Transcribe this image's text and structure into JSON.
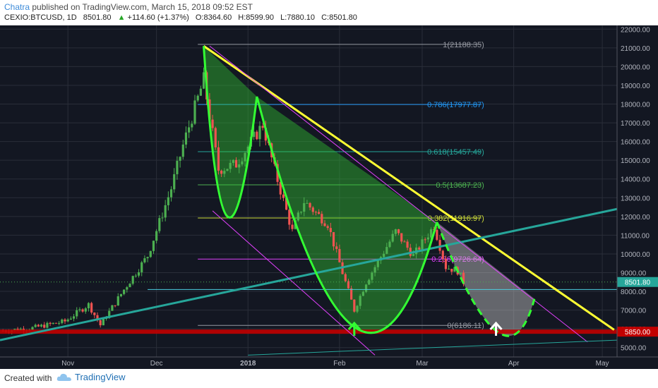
{
  "header": {
    "author": "Chatra",
    "published": "published on TradingView.com, March 15, 2018 09:52 EST",
    "symbol": "CEXIO:BTCUSD, 1D",
    "last": "8501.80",
    "change_arrow": "▲",
    "change": "+114.60 (+1.37%)",
    "open": "O:8364.60",
    "high": "H:8599.90",
    "low": "L:7880.10",
    "close": "C:8501.80"
  },
  "footer": {
    "created_with": "Created with",
    "brand": "TradingView",
    "brand_icon": "tradingview-cloud-icon"
  },
  "colors": {
    "background": "#131722",
    "up_candle": "#4caf50",
    "down_candle": "#ef5350",
    "trend_yellow": "#ffff33",
    "cup_green": "#33ff33",
    "trend_teal": "#26a69a",
    "support_red": "#c20000"
  },
  "chart_data": {
    "type": "candlestick",
    "symbol": "CEXIO:BTCUSD",
    "interval": "1D",
    "ylim": [
      4500,
      22200
    ],
    "y_ticks": [
      "22000.00",
      "21000.00",
      "20000.00",
      "19000.00",
      "18000.00",
      "17000.00",
      "16000.00",
      "15000.00",
      "14000.00",
      "13000.00",
      "12000.00",
      "11000.00",
      "10000.00",
      "9000.00",
      "8000.00",
      "7000.00",
      "6000.00",
      "5000.00"
    ],
    "x_ticks": [
      {
        "label": "Nov",
        "date": "2017-11-01"
      },
      {
        "label": "Dec",
        "date": "2017-12-01"
      },
      {
        "label": "2018",
        "date": "2018-01-01"
      },
      {
        "label": "Feb",
        "date": "2018-02-01"
      },
      {
        "label": "Mar",
        "date": "2018-03-01"
      },
      {
        "label": "Apr",
        "date": "2018-04-01"
      },
      {
        "label": "May",
        "date": "2018-05-01"
      }
    ],
    "x_range": [
      "2017-10-09",
      "2018-05-06"
    ],
    "price_path": [
      [
        "2017-10-10",
        5900
      ],
      [
        "2017-10-20",
        6050
      ],
      [
        "2017-10-31",
        6400
      ],
      [
        "2017-11-08",
        7300
      ],
      [
        "2017-11-12",
        6200
      ],
      [
        "2017-11-20",
        8100
      ],
      [
        "2017-11-28",
        9900
      ],
      [
        "2017-12-06",
        13500
      ],
      [
        "2017-12-10",
        15800
      ],
      [
        "2017-12-17",
        19300
      ],
      [
        "2017-12-22",
        14500
      ],
      [
        "2017-12-28",
        14800
      ],
      [
        "2018-01-06",
        16900
      ],
      [
        "2018-01-10",
        14500
      ],
      [
        "2018-01-16",
        11200
      ],
      [
        "2018-01-20",
        12800
      ],
      [
        "2018-01-28",
        11600
      ],
      [
        "2018-02-02",
        9000
      ],
      [
        "2018-02-06",
        7000
      ],
      [
        "2018-02-10",
        8500
      ],
      [
        "2018-02-20",
        11200
      ],
      [
        "2018-02-26",
        9900
      ],
      [
        "2018-03-05",
        11500
      ],
      [
        "2018-03-09",
        9300
      ],
      [
        "2018-03-13",
        9100
      ],
      [
        "2018-03-15",
        8501.8
      ]
    ],
    "fibonacci": [
      {
        "ratio": "1",
        "level": 21188.35,
        "label": "1(21188.35)",
        "color": "#9598a1"
      },
      {
        "ratio": "0.786",
        "level": 17977.87,
        "label": "0.786(17977.87)",
        "color": "#2196f3"
      },
      {
        "ratio": "0.618",
        "level": 15457.49,
        "label": "0.618(15457.49)",
        "color": "#26a69a"
      },
      {
        "ratio": "0.5",
        "level": 13687.23,
        "label": "0.5(13687.23)",
        "color": "#4caf50"
      },
      {
        "ratio": "0.382",
        "level": 11916.97,
        "label": "0.382(11916.97)",
        "color": "#cddc39"
      },
      {
        "ratio": "0.236",
        "level": 9726.64,
        "label": "0.236(9726.64)",
        "color": "#e040fb"
      },
      {
        "ratio": "0",
        "level": 6186.11,
        "label": "0(6186.11)",
        "color": "#9598a1"
      }
    ],
    "horizontal_lines": [
      {
        "name": "support",
        "level": 5850,
        "label": "5850.00",
        "color": "#c20000"
      },
      {
        "name": "current-level",
        "level": 8100,
        "color": "#4dd0e1"
      }
    ],
    "last_price": {
      "value": 8501.8,
      "label": "8501.80"
    },
    "trendlines": [
      {
        "name": "descending-resistance",
        "color": "#ffff33",
        "points": [
          [
            "2017-12-17",
            21100
          ],
          [
            "2018-05-05",
            5950
          ]
        ]
      },
      {
        "name": "rising-support",
        "color": "#26a69a",
        "points": [
          [
            "2017-10-09",
            5400
          ],
          [
            "2018-05-06",
            12400
          ]
        ]
      },
      {
        "name": "lower-channel-upper",
        "color": "#e040fb",
        "points": [
          [
            "2017-12-19",
            21100
          ],
          [
            "2018-04-26",
            5300
          ]
        ]
      },
      {
        "name": "lower-channel-lower",
        "color": "#e040fb",
        "points": [
          [
            "2017-12-20",
            12300
          ],
          [
            "2018-02-13",
            4600
          ]
        ]
      },
      {
        "name": "bottom-diagonal",
        "color": "#26a69a",
        "points": [
          [
            "2018-01-01",
            4600
          ],
          [
            "2018-05-06",
            5400
          ]
        ]
      }
    ],
    "patterns": [
      {
        "name": "cup-1",
        "kind": "bowl",
        "color": "#33ff33",
        "points": [
          [
            "2017-12-17",
            21100
          ],
          [
            "2017-12-25",
            12000
          ],
          [
            "2018-01-04",
            18400
          ]
        ]
      },
      {
        "name": "cup-2",
        "kind": "bowl",
        "color": "#33ff33",
        "points": [
          [
            "2018-01-04",
            18400
          ],
          [
            "2018-02-06",
            6100
          ],
          [
            "2018-03-06",
            11700
          ]
        ]
      },
      {
        "name": "cup-3-projected",
        "kind": "bowl-dashed",
        "color": "#33ff33",
        "points": [
          [
            "2018-03-06",
            11700
          ],
          [
            "2018-03-26",
            5900
          ],
          [
            "2018-04-08",
            7600
          ]
        ]
      }
    ],
    "arrows": [
      {
        "name": "green-up-arrow",
        "date": "2018-02-06",
        "color": "#33ff33"
      },
      {
        "name": "white-up-arrow",
        "date": "2018-03-26",
        "color": "#ffffff"
      }
    ]
  }
}
